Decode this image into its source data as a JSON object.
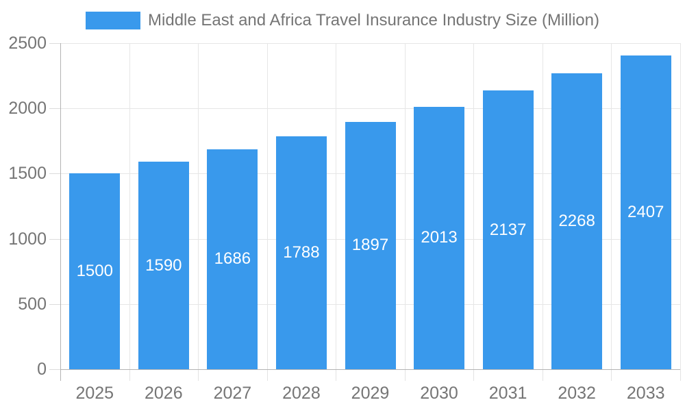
{
  "chart_data": {
    "type": "bar",
    "title": "Middle East and Africa Travel Insurance Industry Size (Million)",
    "categories": [
      "2025",
      "2026",
      "2027",
      "2028",
      "2029",
      "2030",
      "2031",
      "2032",
      "2033"
    ],
    "values": [
      1500,
      1590,
      1686,
      1788,
      1897,
      2013,
      2137,
      2268,
      2407
    ],
    "xlabel": "",
    "ylabel": "",
    "ylim": [
      0,
      2500
    ],
    "yticks": [
      0,
      500,
      1000,
      1500,
      2000,
      2500
    ],
    "grid": true,
    "legend_position": "top-center",
    "bar_value_labels": "inside-center",
    "colors": {
      "bar": "#3999ec",
      "bar_label": "#ffffff",
      "axis_text": "#757575",
      "gridline": "#e6e6e6",
      "axis_line": "#b3b3b3",
      "background": "#ffffff"
    }
  }
}
